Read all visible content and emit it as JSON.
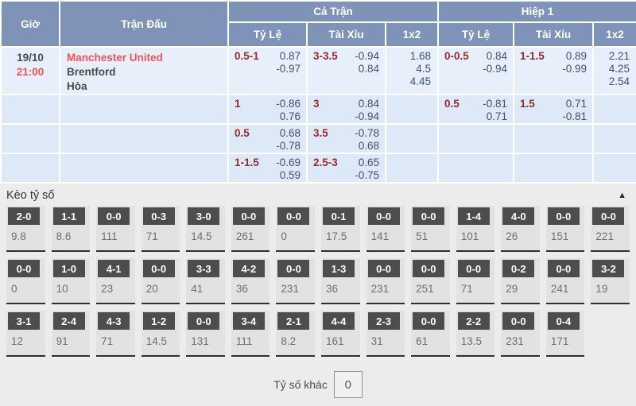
{
  "colors": {
    "header_bg": "#7e93b7",
    "row_highlight_bg": "#e7effb",
    "row_bg": "#dde9f7",
    "accent_red": "#f05351",
    "handicap_maroon": "#9a2a2a",
    "odds_text": "#42506a",
    "score_box_bg": "#4d4d4d",
    "section_bg": "#ececec"
  },
  "header": {
    "time": "Giờ",
    "match": "Trận Đấu",
    "full_match": "Cả Trận",
    "first_half": "Hiệp 1",
    "handicap": "Tỷ Lệ",
    "over_under": "Tài Xỉu",
    "one_x_two": "1x2"
  },
  "match": {
    "date": "19/10",
    "time": "21:00",
    "home": "Manchester United",
    "away": "Brentford",
    "draw": "Hòa"
  },
  "odds_rows": [
    {
      "ft_hdp_line": "0.5-1",
      "ft_hdp_o1": "0.87",
      "ft_hdp_o2": "-0.97",
      "ft_ou_line": "3-3.5",
      "ft_ou_o1": "-0.94",
      "ft_ou_o2": "0.84",
      "ft_1x2_1": "1.68",
      "ft_1x2_2": "4.5",
      "ft_1x2_3": "4.45",
      "h1_hdp_line": "0-0.5",
      "h1_hdp_o1": "0.84",
      "h1_hdp_o2": "-0.94",
      "h1_ou_line": "1-1.5",
      "h1_ou_o1": "0.89",
      "h1_ou_o2": "-0.99",
      "h1_1x2_1": "2.21",
      "h1_1x2_2": "4.25",
      "h1_1x2_3": "2.54"
    },
    {
      "ft_hdp_line": "1",
      "ft_hdp_o1": "-0.86",
      "ft_hdp_o2": "0.76",
      "ft_ou_line": "3",
      "ft_ou_o1": "0.84",
      "ft_ou_o2": "-0.94",
      "h1_hdp_line": "0.5",
      "h1_hdp_o1": "-0.81",
      "h1_hdp_o2": "0.71",
      "h1_ou_line": "1.5",
      "h1_ou_o1": "0.71",
      "h1_ou_o2": "-0.81"
    },
    {
      "ft_hdp_line": "0.5",
      "ft_hdp_o1": "0.68",
      "ft_hdp_o2": "-0.78",
      "ft_ou_line": "3.5",
      "ft_ou_o1": "-0.78",
      "ft_ou_o2": "0.68"
    },
    {
      "ft_hdp_line": "1-1.5",
      "ft_hdp_o1": "-0.69",
      "ft_hdp_o2": "0.59",
      "ft_ou_line": "2.5-3",
      "ft_ou_o1": "0.65",
      "ft_ou_o2": "-0.75"
    }
  ],
  "scores": {
    "title": "Kèo tỷ số",
    "collapse_icon": "▲",
    "rows": [
      [
        {
          "score": "2-0",
          "odds": "9.8"
        },
        {
          "score": "1-1",
          "odds": "8.6"
        },
        {
          "score": "0-0",
          "odds": "111"
        },
        {
          "score": "0-3",
          "odds": "71"
        },
        {
          "score": "3-0",
          "odds": "14.5"
        },
        {
          "score": "0-0",
          "odds": "261"
        },
        {
          "score": "0-0",
          "odds": "0"
        },
        {
          "score": "0-1",
          "odds": "17.5"
        },
        {
          "score": "0-0",
          "odds": "141"
        },
        {
          "score": "0-0",
          "odds": "51"
        },
        {
          "score": "1-4",
          "odds": "101"
        },
        {
          "score": "4-0",
          "odds": "26"
        },
        {
          "score": "0-0",
          "odds": "151"
        },
        {
          "score": "0-0",
          "odds": "221"
        }
      ],
      [
        {
          "score": "0-0",
          "odds": "0"
        },
        {
          "score": "1-0",
          "odds": "10"
        },
        {
          "score": "4-1",
          "odds": "23"
        },
        {
          "score": "0-0",
          "odds": "20"
        },
        {
          "score": "3-3",
          "odds": "41"
        },
        {
          "score": "4-2",
          "odds": "36"
        },
        {
          "score": "0-0",
          "odds": "231"
        },
        {
          "score": "1-3",
          "odds": "36"
        },
        {
          "score": "0-0",
          "odds": "231"
        },
        {
          "score": "0-0",
          "odds": "251"
        },
        {
          "score": "0-0",
          "odds": "71"
        },
        {
          "score": "0-2",
          "odds": "29"
        },
        {
          "score": "0-0",
          "odds": "241"
        },
        {
          "score": "3-2",
          "odds": "19"
        }
      ],
      [
        {
          "score": "3-1",
          "odds": "12"
        },
        {
          "score": "2-4",
          "odds": "91"
        },
        {
          "score": "4-3",
          "odds": "71"
        },
        {
          "score": "1-2",
          "odds": "14.5"
        },
        {
          "score": "0-0",
          "odds": "131"
        },
        {
          "score": "3-4",
          "odds": "111"
        },
        {
          "score": "2-1",
          "odds": "8.2"
        },
        {
          "score": "4-4",
          "odds": "161"
        },
        {
          "score": "2-3",
          "odds": "31"
        },
        {
          "score": "0-0",
          "odds": "61"
        },
        {
          "score": "2-2",
          "odds": "13.5"
        },
        {
          "score": "0-0",
          "odds": "231"
        },
        {
          "score": "0-4",
          "odds": "171"
        }
      ]
    ],
    "other_label": "Tỷ số khác",
    "other_value": "0"
  }
}
